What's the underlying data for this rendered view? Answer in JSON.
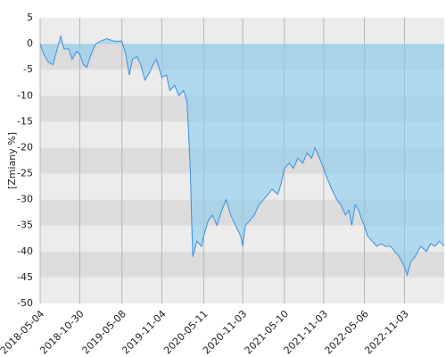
{
  "chart_data": {
    "type": "line",
    "y_label": "[Zmiany %]",
    "x": [
      "2018-05-04",
      "2018-05-20",
      "2018-06-10",
      "2018-07-01",
      "2018-07-20",
      "2018-08-05",
      "2018-08-20",
      "2018-09-10",
      "2018-09-25",
      "2018-10-15",
      "2018-10-30",
      "2018-11-15",
      "2018-12-01",
      "2018-12-20",
      "2019-01-10",
      "2019-02-01",
      "2019-03-01",
      "2019-04-01",
      "2019-05-08",
      "2019-05-25",
      "2019-06-10",
      "2019-06-25",
      "2019-07-15",
      "2019-08-01",
      "2019-08-20",
      "2019-09-10",
      "2019-09-25",
      "2019-10-10",
      "2019-10-25",
      "2019-11-04",
      "2019-11-25",
      "2019-12-10",
      "2020-01-01",
      "2020-01-20",
      "2020-02-10",
      "2020-02-25",
      "2020-03-05",
      "2020-03-12",
      "2020-03-18",
      "2020-03-23",
      "2020-04-10",
      "2020-05-01",
      "2020-05-11",
      "2020-06-01",
      "2020-06-20",
      "2020-07-10",
      "2020-08-01",
      "2020-08-20",
      "2020-09-10",
      "2020-10-01",
      "2020-10-25",
      "2020-11-03",
      "2020-11-15",
      "2020-12-05",
      "2020-12-25",
      "2021-01-15",
      "2021-02-05",
      "2021-02-25",
      "2021-03-15",
      "2021-04-10",
      "2021-04-25",
      "2021-05-10",
      "2021-06-01",
      "2021-06-20",
      "2021-07-10",
      "2021-08-01",
      "2021-08-20",
      "2021-09-10",
      "2021-09-25",
      "2021-10-15",
      "2021-11-03",
      "2021-11-20",
      "2021-12-10",
      "2022-01-01",
      "2022-01-20",
      "2022-02-10",
      "2022-02-25",
      "2022-03-10",
      "2022-03-25",
      "2022-04-10",
      "2022-04-25",
      "2022-05-06",
      "2022-05-20",
      "2022-06-10",
      "2022-07-01",
      "2022-07-20",
      "2022-08-10",
      "2022-09-01",
      "2022-09-20",
      "2022-10-10",
      "2022-11-03",
      "2022-11-15",
      "2022-12-01",
      "2022-12-20",
      "2023-01-15",
      "2023-02-10",
      "2023-03-01",
      "2023-03-20",
      "2023-04-10",
      "2023-05-01"
    ],
    "series": [
      {
        "color": "#3b8fe8",
        "fill": "rgba(140,205,238,0.62)",
        "values": [
          0,
          -2,
          -3.5,
          -4,
          -1,
          1.5,
          -1,
          -1,
          -3,
          -1.5,
          -2,
          -4,
          -4.5,
          -2,
          0,
          0.5,
          1,
          0.5,
          0.5,
          -2,
          -6,
          -3,
          -2.5,
          -4,
          -7,
          -5.5,
          -4,
          -3,
          -5,
          -6.5,
          -6,
          -9,
          -8,
          -10,
          -9,
          -11,
          -18,
          -25,
          -35,
          -41,
          -38,
          -39,
          -37,
          -34,
          -33,
          -35,
          -32,
          -30,
          -33,
          -35,
          -37,
          -39,
          -35,
          -34,
          -33,
          -31,
          -30,
          -29,
          -28,
          -29,
          -27,
          -24,
          -23,
          -24,
          -22,
          -23,
          -21,
          -22,
          -20,
          -22,
          -24,
          -26,
          -28,
          -30,
          -31,
          -33,
          -32,
          -35,
          -31,
          -32,
          -34,
          -35,
          -37,
          -38,
          -39,
          -38.5,
          -39,
          -39,
          -40,
          -41,
          -43,
          -44.5,
          -42,
          -41,
          -39,
          -40,
          -38.5,
          -39,
          -38,
          -39
        ]
      }
    ],
    "xlim": [
      "2018-05-04",
      "2023-05-01"
    ],
    "xticks": [
      "2018-05-04",
      "2018-10-30",
      "2019-05-08",
      "2019-11-04",
      "2020-05-11",
      "2020-11-03",
      "2021-05-10",
      "2021-11-03",
      "2022-05-06",
      "2022-11-03"
    ],
    "ylim": [
      -50,
      5
    ],
    "yticks": [
      5,
      0,
      -5,
      -10,
      -15,
      -20,
      -25,
      -30,
      -35,
      -40,
      -45,
      -50
    ],
    "grid": true
  }
}
